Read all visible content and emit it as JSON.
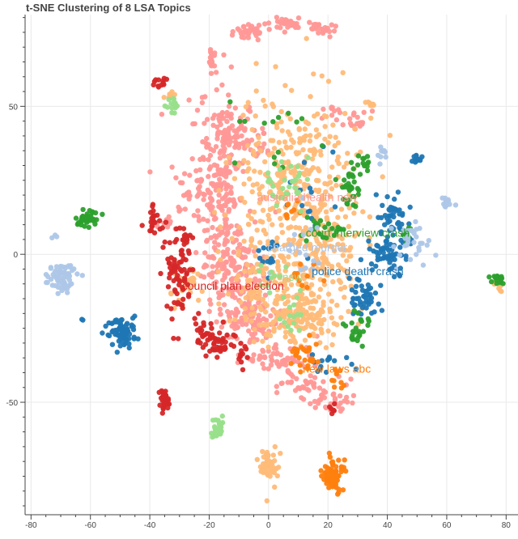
{
  "chart_data": {
    "type": "scatter",
    "title": "t-SNE Clustering of 8 LSA Topics",
    "xlabel": "",
    "ylabel": "",
    "xlim": [
      -82,
      84
    ],
    "ylim": [
      -88,
      81
    ],
    "x_ticks": [
      -80,
      -60,
      -40,
      -20,
      0,
      20,
      40,
      60,
      80
    ],
    "y_ticks": [
      -50,
      0,
      50
    ],
    "grid": true,
    "legend": "none",
    "series": [
      {
        "color": "#ff9896",
        "clusters": [
          {
            "x": -15,
            "y": 14,
            "sx": 4,
            "sy": 20,
            "n": 200
          },
          {
            "x": -12,
            "y": 40,
            "sx": 6,
            "sy": 5,
            "n": 90
          },
          {
            "x": -24,
            "y": 22,
            "sx": 5,
            "sy": 5,
            "n": 60
          },
          {
            "x": -10,
            "y": -8,
            "sx": 5,
            "sy": 8,
            "n": 120
          },
          {
            "x": -6,
            "y": -22,
            "sx": 5,
            "sy": 4,
            "n": 80
          },
          {
            "x": 3,
            "y": -35,
            "sx": 6,
            "sy": 2.5,
            "n": 60
          },
          {
            "x": 12,
            "y": -44,
            "sx": 5,
            "sy": 2,
            "n": 40
          },
          {
            "x": 20,
            "y": -50,
            "sx": 4,
            "sy": 1.5,
            "n": 30
          },
          {
            "x": 6,
            "y": 78,
            "sx": 2.5,
            "sy": 1,
            "n": 35
          },
          {
            "x": 18,
            "y": 76,
            "sx": 2,
            "sy": 1,
            "n": 25
          },
          {
            "x": -7,
            "y": 75,
            "sx": 2.5,
            "sy": 1.2,
            "n": 35
          },
          {
            "x": -19,
            "y": 66,
            "sx": 0.8,
            "sy": 2.5,
            "n": 20
          },
          {
            "x": 30,
            "y": 45,
            "sx": 2,
            "sy": 2,
            "n": 18
          },
          {
            "x": 21,
            "y": 48,
            "sx": 1.5,
            "sy": 1.5,
            "n": 10
          },
          {
            "x": -35,
            "y": 11,
            "sx": 1.5,
            "sy": 1.5,
            "n": 10
          }
        ]
      },
      {
        "color": "#ffbb78",
        "clusters": [
          {
            "x": 10,
            "y": 25,
            "sx": 10,
            "sy": 17,
            "n": 350
          },
          {
            "x": 2,
            "y": -12,
            "sx": 8,
            "sy": 8,
            "n": 180
          },
          {
            "x": 12,
            "y": -22,
            "sx": 6,
            "sy": 5,
            "n": 100
          },
          {
            "x": 20,
            "y": 2,
            "sx": 5,
            "sy": 10,
            "n": 90
          },
          {
            "x": 0,
            "y": -71,
            "sx": 2,
            "sy": 3,
            "n": 50
          },
          {
            "x": -28,
            "y": -10,
            "sx": 2.5,
            "sy": 4,
            "n": 30
          },
          {
            "x": 77,
            "y": -11,
            "sx": 1,
            "sy": 1,
            "n": 8
          },
          {
            "x": 35,
            "y": 50,
            "sx": 1.5,
            "sy": 1,
            "n": 10
          },
          {
            "x": -33,
            "y": 54,
            "sx": 1,
            "sy": 1.5,
            "n": 8
          }
        ]
      },
      {
        "color": "#1f77b4",
        "clusters": [
          {
            "x": -49,
            "y": -26,
            "sx": 2.5,
            "sy": 2.5,
            "n": 80
          },
          {
            "x": 43,
            "y": 13,
            "sx": 2.5,
            "sy": 4,
            "n": 45
          },
          {
            "x": 40,
            "y": 0,
            "sx": 3,
            "sy": 3,
            "n": 60
          },
          {
            "x": 31,
            "y": -14,
            "sx": 3,
            "sy": 3,
            "n": 45
          },
          {
            "x": 50,
            "y": 32,
            "sx": 0.8,
            "sy": 0.8,
            "n": 15
          },
          {
            "x": 22,
            "y": -37,
            "sx": 3,
            "sy": 2,
            "n": 15
          },
          {
            "x": 14,
            "y": 20,
            "sx": 4,
            "sy": 10,
            "n": 15
          },
          {
            "x": 0,
            "y": 0,
            "sx": 2,
            "sy": 3,
            "n": 15
          },
          {
            "x": -63,
            "y": -22,
            "sx": 0.3,
            "sy": 0.3,
            "n": 2
          }
        ]
      },
      {
        "color": "#2ca02c",
        "clusters": [
          {
            "x": -61,
            "y": 12,
            "sx": 1.5,
            "sy": 1.5,
            "n": 45
          },
          {
            "x": 27,
            "y": 22,
            "sx": 2,
            "sy": 3,
            "n": 30
          },
          {
            "x": 20,
            "y": 8,
            "sx": 4,
            "sy": 2,
            "n": 20
          },
          {
            "x": 30,
            "y": -25,
            "sx": 2,
            "sy": 3,
            "n": 25
          },
          {
            "x": 77,
            "y": -8,
            "sx": 1.2,
            "sy": 1,
            "n": 18
          },
          {
            "x": 32,
            "y": 31,
            "sx": 2,
            "sy": 1.5,
            "n": 12
          },
          {
            "x": 2,
            "y": 40,
            "sx": 8,
            "sy": 8,
            "n": 15
          },
          {
            "x": 46,
            "y": 7,
            "sx": 1.5,
            "sy": 1.5,
            "n": 10
          }
        ]
      },
      {
        "color": "#d62728",
        "clusters": [
          {
            "x": -30,
            "y": -8,
            "sx": 2.5,
            "sy": 8,
            "n": 80
          },
          {
            "x": -17,
            "y": -30,
            "sx": 2.5,
            "sy": 2.5,
            "n": 40
          },
          {
            "x": -35,
            "y": -49,
            "sx": 1,
            "sy": 2,
            "n": 30
          },
          {
            "x": -39,
            "y": 11,
            "sx": 1.5,
            "sy": 2,
            "n": 22
          },
          {
            "x": -37,
            "y": 58,
            "sx": 1.5,
            "sy": 1,
            "n": 12
          },
          {
            "x": -22,
            "y": -25,
            "sx": 1.5,
            "sy": 3,
            "n": 20
          },
          {
            "x": -28,
            "y": 6,
            "sx": 1.2,
            "sy": 1.2,
            "n": 10
          },
          {
            "x": -9,
            "y": -34,
            "sx": 2,
            "sy": 2,
            "n": 12
          },
          {
            "x": 22,
            "y": -52,
            "sx": 1,
            "sy": 0.6,
            "n": 6
          }
        ]
      },
      {
        "color": "#ff7f0e",
        "clusters": [
          {
            "x": 22,
            "y": -75,
            "sx": 2,
            "sy": 3,
            "n": 70
          },
          {
            "x": 12,
            "y": -34,
            "sx": 2.5,
            "sy": 2.5,
            "n": 30
          },
          {
            "x": 23,
            "y": -41,
            "sx": 2,
            "sy": 2,
            "n": 10
          },
          {
            "x": 8,
            "y": 15,
            "sx": 1.5,
            "sy": 2,
            "n": 10
          },
          {
            "x": 12,
            "y": -8,
            "sx": 3,
            "sy": 3,
            "n": 10
          }
        ]
      },
      {
        "color": "#aec7e8",
        "clusters": [
          {
            "x": -70,
            "y": -8,
            "sx": 2.5,
            "sy": 2.5,
            "n": 70
          },
          {
            "x": 48,
            "y": 5,
            "sx": 3,
            "sy": 4,
            "n": 30
          },
          {
            "x": 60,
            "y": 17,
            "sx": 1.2,
            "sy": 1.2,
            "n": 15
          },
          {
            "x": 38,
            "y": 33,
            "sx": 1.2,
            "sy": 1.2,
            "n": 10
          },
          {
            "x": 10,
            "y": 0,
            "sx": 5,
            "sy": 5,
            "n": 15
          },
          {
            "x": -72,
            "y": 6,
            "sx": 0.5,
            "sy": 0.5,
            "n": 3
          }
        ]
      },
      {
        "color": "#98df8a",
        "clusters": [
          {
            "x": -17,
            "y": -59,
            "sx": 1.2,
            "sy": 2,
            "n": 30
          },
          {
            "x": -32,
            "y": 50,
            "sx": 1.2,
            "sy": 1.5,
            "n": 15
          },
          {
            "x": 6,
            "y": 25,
            "sx": 4,
            "sy": 4,
            "n": 30
          },
          {
            "x": 8,
            "y": -20,
            "sx": 2,
            "sy": 3,
            "n": 15
          },
          {
            "x": 0,
            "y": -8,
            "sx": 2,
            "sy": 2,
            "n": 10
          }
        ]
      }
    ],
    "annotations": [
      {
        "text": "australia health nsw",
        "x": 13,
        "y": 18,
        "color": "#ff9896"
      },
      {
        "text": "court interview crash",
        "x": 30,
        "y": 6,
        "color": "#2ca02c"
      },
      {
        "text": "charged murder",
        "x": 13,
        "y": 1,
        "color": "#aec7e8"
      },
      {
        "text": "police death crash",
        "x": 30,
        "y": -7,
        "color": "#1f77b4"
      },
      {
        "text": "nsw",
        "x": 8,
        "y": -9,
        "color": "#98df8a"
      },
      {
        "text": "council plan election",
        "x": -12,
        "y": -12,
        "color": "#d62728"
      },
      {
        "text": "new laws abc",
        "x": 23,
        "y": -40,
        "color": "#ff7f0e"
      }
    ]
  }
}
